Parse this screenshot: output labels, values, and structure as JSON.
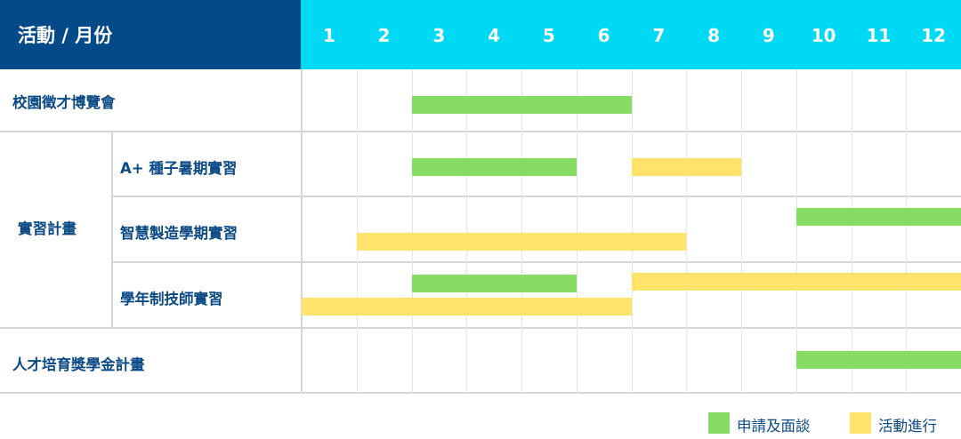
{
  "header": {
    "title": "活動 / 月份"
  },
  "chart_data": {
    "type": "gantt",
    "months": [
      "1",
      "2",
      "3",
      "4",
      "5",
      "6",
      "7",
      "8",
      "9",
      "10",
      "11",
      "12"
    ],
    "groups": [
      {
        "label": "校園徵才博覽會",
        "rows": [
          {
            "label": "",
            "bars": [
              {
                "type": "application",
                "start": 3,
                "end": 6
              }
            ]
          }
        ]
      },
      {
        "label": "實習計畫",
        "rows": [
          {
            "label": "A+ 種子暑期實習",
            "bars": [
              {
                "type": "application",
                "start": 3,
                "end": 5
              },
              {
                "type": "activity",
                "start": 7,
                "end": 8
              }
            ]
          },
          {
            "label": "智慧製造學期實習",
            "bars": [
              {
                "type": "application",
                "start": 10,
                "end": 12
              },
              {
                "type": "activity",
                "start": 2,
                "end": 7
              }
            ]
          },
          {
            "label": "學年制技師實習",
            "bars": [
              {
                "type": "application",
                "start": 3,
                "end": 5
              },
              {
                "type": "activity",
                "start": 7,
                "end": 12
              },
              {
                "type": "activity",
                "start": 1,
                "end": 6
              }
            ]
          }
        ]
      },
      {
        "label": "人才培育獎學金計畫",
        "rows": [
          {
            "label": "",
            "bars": [
              {
                "type": "application",
                "start": 10,
                "end": 12
              }
            ]
          }
        ]
      }
    ],
    "legend": [
      {
        "type": "application",
        "label": "申請及面談",
        "color": "#86dc64"
      },
      {
        "type": "activity",
        "label": "活動進行",
        "color": "#ffe36a"
      }
    ]
  }
}
